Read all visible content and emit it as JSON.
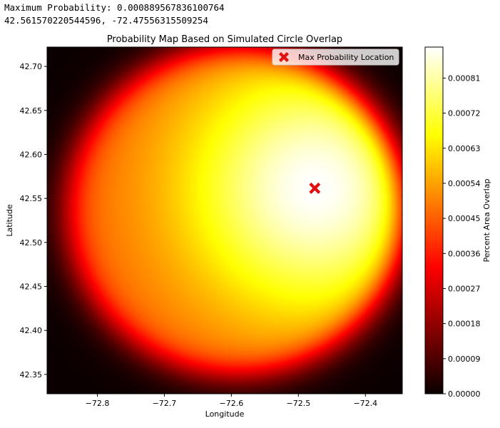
{
  "output": {
    "line1": "Maximum Probability: 0.0008895678361007​64",
    "line2": "42.561570220544596, -72.47556315509254"
  },
  "chart_data": {
    "type": "heatmap",
    "title": "Probability Map Based on Simulated Circle Overlap",
    "xlabel": "Longitude",
    "ylabel": "Latitude",
    "xlim": [
      -72.875,
      -72.345
    ],
    "ylim": [
      42.328,
      42.722
    ],
    "xticks": [
      -72.8,
      -72.7,
      -72.6,
      -72.5,
      -72.4
    ],
    "xtick_labels": [
      "−72.8",
      "−72.7",
      "−72.6",
      "−72.5",
      "−72.4"
    ],
    "yticks": [
      42.35,
      42.4,
      42.45,
      42.5,
      42.55,
      42.6,
      42.65,
      42.7
    ],
    "ytick_labels": [
      "42.35",
      "42.40",
      "42.45",
      "42.50",
      "42.55",
      "42.60",
      "42.65",
      "42.70"
    ],
    "colormap": "hot",
    "colorbar": {
      "label": "Percent Area Overlap",
      "min": 0.0,
      "max": 0.00088957,
      "ticks": [
        0.0,
        9e-05,
        0.00018,
        0.00027,
        0.00036,
        0.00045,
        0.00054,
        0.00063,
        0.00072,
        0.00081
      ],
      "tick_labels": [
        "0.00000",
        "0.00009",
        "0.00018",
        "0.00027",
        "0.00036",
        "0.00045",
        "0.00054",
        "0.00063",
        "0.00072",
        "0.00081"
      ]
    },
    "max_point": {
      "x": -72.47556315509254,
      "y": 42.561570220544596,
      "value": 0.000889567836100764
    },
    "legend": {
      "placement": "top-right",
      "entries": [
        "Max Probability Location"
      ]
    },
    "marker_color": "#e01010"
  }
}
